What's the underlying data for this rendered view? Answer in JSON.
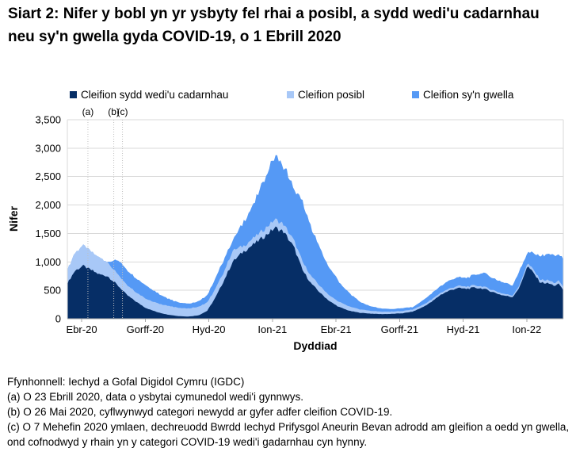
{
  "title": "Siart 2: Nifer y bobl yn yr ysbyty fel rhai a posibl, a sydd wedi'u cadarnhau neu sy'n gwella gyda COVID-19, o 1 Ebrill 2020",
  "legend": [
    {
      "label": "Cleifion sydd wedi'u cadarnhau",
      "color": "#062E66"
    },
    {
      "label": "Cleifion posibl",
      "color": "#A8C8F7"
    },
    {
      "label": "Cleifion sy'n gwella",
      "color": "#5599F5"
    }
  ],
  "chart_data": {
    "type": "area",
    "stacked": true,
    "title": "Siart 2: Nifer y bobl yn yr ysbyty fel rhai a posibl, a sydd wedi'u cadarnhau neu sy'n gwella gyda COVID-19, o 1 Ebrill 2020",
    "xlabel": "Dyddiad",
    "ylabel": "Nifer",
    "ylim": [
      0,
      3500
    ],
    "ytick_step": 500,
    "yticks": [
      "0",
      "500",
      "1,000",
      "1,500",
      "2,000",
      "2,500",
      "3,000",
      "3,500"
    ],
    "grid": true,
    "legend_position": "top",
    "x_axis": {
      "label": "Dyddiad",
      "unit": "months since 1 April 2020",
      "range_months": [
        0,
        23.4
      ],
      "ticks": [
        {
          "label": "Ebr-20",
          "t": 0.675
        },
        {
          "label": "Gorff-20",
          "t": 3.675
        },
        {
          "label": "Hyd-20",
          "t": 6.675
        },
        {
          "label": "Ion-21",
          "t": 9.675
        },
        {
          "label": "Ebr-21",
          "t": 12.675
        },
        {
          "label": "Gorff-21",
          "t": 15.675
        },
        {
          "label": "Hyd-21",
          "t": 18.675
        },
        {
          "label": "Ion-22",
          "t": 21.675
        }
      ]
    },
    "series": [
      {
        "key": "cadarnhau",
        "name": "Cleifion sydd wedi'u cadarnhau",
        "color": "#062E66"
      },
      {
        "key": "posibl",
        "name": "Cleifion posibl",
        "color": "#A8C8F7"
      },
      {
        "key": "gwella",
        "name": "Cleifion sy'n gwella",
        "color": "#5599F5"
      }
    ],
    "t": [
      0,
      0.35,
      0.73,
      1.1,
      1.5,
      1.9,
      2.2,
      2.5,
      2.8,
      3.2,
      3.7,
      4.2,
      4.7,
      5.2,
      5.7,
      6.2,
      6.6,
      7.0,
      7.4,
      7.8,
      8.3,
      8.8,
      9.3,
      9.8,
      10.2,
      10.7,
      11.1,
      11.5,
      12.0,
      12.4,
      12.8,
      13.3,
      13.8,
      14.3,
      14.8,
      15.3,
      15.8,
      16.3,
      16.8,
      17.2,
      17.6,
      18.0,
      18.4,
      18.8,
      19.2,
      19.6,
      20.0,
      20.5,
      21.0,
      21.35,
      21.7,
      22.0,
      22.3,
      22.7,
      23.0,
      23.2,
      23.4
    ],
    "values": {
      "cadarnhau": [
        620,
        840,
        930,
        860,
        780,
        750,
        650,
        540,
        420,
        310,
        190,
        120,
        75,
        48,
        38,
        60,
        140,
        380,
        680,
        1000,
        1180,
        1310,
        1450,
        1600,
        1530,
        1250,
        850,
        620,
        430,
        300,
        210,
        140,
        105,
        90,
        82,
        85,
        95,
        125,
        210,
        300,
        420,
        490,
        540,
        525,
        545,
        530,
        480,
        415,
        380,
        560,
        930,
        800,
        640,
        620,
        580,
        610,
        500
      ],
      "posibl": [
        240,
        320,
        360,
        330,
        290,
        250,
        210,
        190,
        175,
        165,
        165,
        155,
        155,
        150,
        145,
        150,
        150,
        150,
        160,
        195,
        100,
        110,
        130,
        145,
        130,
        115,
        150,
        130,
        110,
        100,
        90,
        75,
        60,
        50,
        42,
        40,
        40,
        38,
        40,
        40,
        35,
        35,
        38,
        38,
        40,
        40,
        35,
        32,
        30,
        40,
        50,
        55,
        50,
        55,
        50,
        55,
        55
      ],
      "gwella": [
        0,
        0,
        0,
        0,
        0,
        0,
        170,
        270,
        265,
        250,
        230,
        185,
        130,
        95,
        85,
        95,
        125,
        185,
        220,
        175,
        420,
        610,
        890,
        1105,
        1030,
        915,
        1050,
        850,
        640,
        480,
        360,
        235,
        135,
        80,
        56,
        45,
        50,
        42,
        80,
        105,
        120,
        140,
        152,
        147,
        185,
        240,
        215,
        203,
        180,
        250,
        185,
        300,
        420,
        465,
        490,
        470,
        495
      ]
    },
    "annotations": [
      {
        "label": "(a)",
        "t": 0.97
      },
      {
        "label": "(b)",
        "t": 2.19
      },
      {
        "label": "(c)",
        "t": 2.6
      }
    ]
  },
  "footnotes": [
    "Ffynhonnell: Iechyd a Gofal Digidol Cymru (IGDC)",
    "(a) O 23 Ebrill 2020, data o ysbytai cymunedol wedi'i gynnwys.",
    "(b) O 26 Mai 2020, cyflwynwyd categori newydd ar gyfer adfer cleifion COVID-19.",
    "(c) O 7 Mehefin 2020 ymlaen, dechreuodd Bwrdd Iechyd Prifysgol Aneurin Bevan adrodd am gleifion a oedd yn gwella, ond cofnodwyd y rhain yn y categori COVID-19 wedi'i gadarnhau cyn hynny."
  ]
}
